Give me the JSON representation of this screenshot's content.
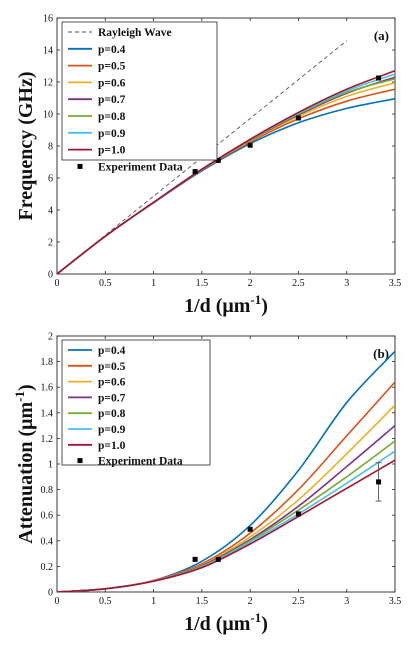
{
  "chart_data": [
    {
      "type": "line",
      "panel_label": "(a)",
      "xlabel": "1/d (μm",
      "xlabel_sup": "-1",
      "xlabel_close": ")",
      "ylabel": "Frequency (GHz)",
      "xlim": [
        0,
        3.5
      ],
      "ylim": [
        0,
        16
      ],
      "xticks": [
        "0",
        "0.5",
        "1",
        "1.5",
        "2",
        "2.5",
        "3",
        "3.5"
      ],
      "yticks": [
        "0",
        "2",
        "4",
        "6",
        "8",
        "10",
        "12",
        "14",
        "16"
      ],
      "legend_position": "top-left",
      "grid": false,
      "series": [
        {
          "name": "Rayleigh Wave",
          "color": "#555555",
          "dashed": true,
          "x": [
            0,
            0.5,
            1,
            1.5,
            2,
            2.5,
            3
          ],
          "y": [
            0,
            2.43,
            4.86,
            7.29,
            9.72,
            12.15,
            14.58
          ]
        },
        {
          "name": "p=0.4",
          "color": "#0072BD",
          "x": [
            0,
            0.5,
            1,
            1.5,
            2,
            2.5,
            3,
            3.5
          ],
          "y": [
            0,
            2.36,
            4.45,
            6.45,
            8.15,
            9.45,
            10.35,
            10.95
          ]
        },
        {
          "name": "p=0.5",
          "color": "#D95319",
          "x": [
            0,
            0.5,
            1,
            1.5,
            2,
            2.5,
            3,
            3.5
          ],
          "y": [
            0,
            2.36,
            4.46,
            6.5,
            8.25,
            9.7,
            10.8,
            11.55
          ]
        },
        {
          "name": "p=0.6",
          "color": "#EDB120",
          "x": [
            0,
            0.5,
            1,
            1.5,
            2,
            2.5,
            3,
            3.5
          ],
          "y": [
            0,
            2.36,
            4.47,
            6.52,
            8.32,
            9.85,
            11.1,
            11.95
          ]
        },
        {
          "name": "p=0.7",
          "color": "#7E2F8E",
          "x": [
            0,
            0.5,
            1,
            1.5,
            2,
            2.5,
            3,
            3.5
          ],
          "y": [
            0,
            2.36,
            4.47,
            6.53,
            8.36,
            9.95,
            11.3,
            12.3
          ]
        },
        {
          "name": "p=0.8",
          "color": "#77AC30",
          "x": [
            0,
            0.5,
            1,
            1.5,
            2,
            2.5,
            3,
            3.5
          ],
          "y": [
            0,
            2.36,
            4.47,
            6.54,
            8.38,
            10.0,
            11.35,
            12.2
          ]
        },
        {
          "name": "p=0.9",
          "color": "#4DBEEE",
          "x": [
            0,
            0.5,
            1,
            1.5,
            2,
            2.5,
            3,
            3.5
          ],
          "y": [
            0,
            2.36,
            4.47,
            6.54,
            8.4,
            10.05,
            11.45,
            12.5
          ]
        },
        {
          "name": "p=1.0",
          "color": "#A2142F",
          "x": [
            0,
            0.5,
            1,
            1.5,
            2,
            2.5,
            3,
            3.5
          ],
          "y": [
            0,
            2.36,
            4.48,
            6.55,
            8.42,
            10.1,
            11.55,
            12.7
          ]
        }
      ],
      "experiment": {
        "name": "Experiment Data",
        "color": "#000000",
        "x": [
          1.43,
          1.67,
          2.0,
          2.5,
          3.33
        ],
        "y": [
          6.4,
          7.1,
          8.05,
          9.75,
          12.25
        ]
      }
    },
    {
      "type": "line",
      "panel_label": "(b)",
      "xlabel": "1/d (μm",
      "xlabel_sup": "-1",
      "xlabel_close": ")",
      "ylabel": "Attenuation (μm",
      "ylabel_sup": "-1",
      "ylabel_close": ")",
      "xlim": [
        0,
        3.5
      ],
      "ylim": [
        0,
        2
      ],
      "xticks": [
        "0",
        "0.5",
        "1",
        "1.5",
        "2",
        "2.5",
        "3",
        "3.5"
      ],
      "yticks": [
        "0",
        "0.2",
        "0.4",
        "0.6",
        "0.8",
        "1",
        "1.2",
        "1.4",
        "1.6",
        "1.8",
        "2"
      ],
      "legend_position": "top-left",
      "grid": false,
      "series": [
        {
          "name": "p=0.4",
          "color": "#0072BD",
          "x": [
            0,
            0.5,
            1,
            1.5,
            2,
            2.5,
            3,
            3.5
          ],
          "y": [
            0,
            0.025,
            0.09,
            0.24,
            0.52,
            0.95,
            1.48,
            1.88
          ]
        },
        {
          "name": "p=0.5",
          "color": "#D95319",
          "x": [
            0,
            0.5,
            1,
            1.5,
            2,
            2.5,
            3,
            3.5
          ],
          "y": [
            0,
            0.025,
            0.09,
            0.22,
            0.46,
            0.8,
            1.22,
            1.64
          ]
        },
        {
          "name": "p=0.6",
          "color": "#EDB120",
          "x": [
            0,
            0.5,
            1,
            1.5,
            2,
            2.5,
            3,
            3.5
          ],
          "y": [
            0,
            0.025,
            0.088,
            0.21,
            0.43,
            0.72,
            1.08,
            1.46
          ]
        },
        {
          "name": "p=0.7",
          "color": "#7E2F8E",
          "x": [
            0,
            0.5,
            1,
            1.5,
            2,
            2.5,
            3,
            3.5
          ],
          "y": [
            0,
            0.025,
            0.087,
            0.205,
            0.41,
            0.67,
            0.98,
            1.3
          ]
        },
        {
          "name": "p=0.8",
          "color": "#77AC30",
          "x": [
            0,
            0.5,
            1,
            1.5,
            2,
            2.5,
            3,
            3.5
          ],
          "y": [
            0,
            0.025,
            0.086,
            0.2,
            0.4,
            0.64,
            0.9,
            1.18
          ]
        },
        {
          "name": "p=0.9",
          "color": "#4DBEEE",
          "x": [
            0,
            0.5,
            1,
            1.5,
            2,
            2.5,
            3,
            3.5
          ],
          "y": [
            0,
            0.025,
            0.085,
            0.195,
            0.39,
            0.61,
            0.85,
            1.1
          ]
        },
        {
          "name": "p=1.0",
          "color": "#A2142F",
          "x": [
            0,
            0.5,
            1,
            1.5,
            2,
            2.5,
            3,
            3.5
          ],
          "y": [
            0,
            0.025,
            0.084,
            0.19,
            0.375,
            0.59,
            0.81,
            1.03
          ]
        }
      ],
      "experiment": {
        "name": "Experiment Data",
        "color": "#000000",
        "x": [
          1.43,
          1.67,
          2.0,
          2.5,
          3.33
        ],
        "y": [
          0.255,
          0.255,
          0.49,
          0.61,
          0.86
        ],
        "error_low": [
          0,
          0,
          0,
          0,
          0.15
        ],
        "error_high": [
          0,
          0,
          0,
          0,
          0.15
        ]
      }
    }
  ]
}
